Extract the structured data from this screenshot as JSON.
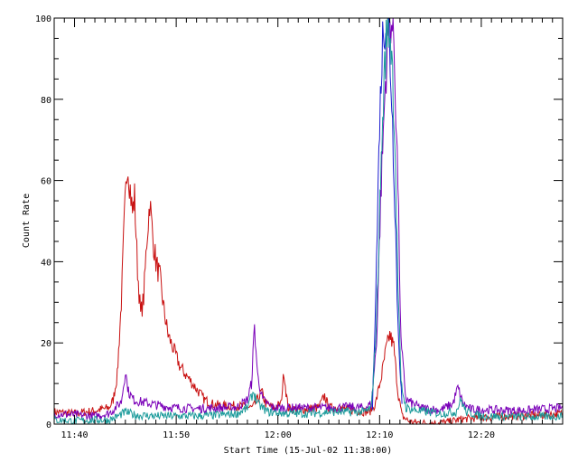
{
  "chart_data": {
    "type": "line",
    "title": "",
    "xlabel": "Start Time (15-Jul-02 11:38:00)",
    "ylabel": "Count Rate",
    "x_unit": "minutes after 11:38:00",
    "xlim": [
      0,
      50
    ],
    "ylim": [
      0,
      100
    ],
    "x_ticks": [
      {
        "value": 2,
        "label": "11:40"
      },
      {
        "value": 12,
        "label": "11:50"
      },
      {
        "value": 22,
        "label": "12:00"
      },
      {
        "value": 32,
        "label": "12:10"
      },
      {
        "value": 42,
        "label": "12:20"
      }
    ],
    "y_ticks": [
      {
        "value": 0,
        "label": "0"
      },
      {
        "value": 20,
        "label": "20"
      },
      {
        "value": 40,
        "label": "40"
      },
      {
        "value": 60,
        "label": "60"
      },
      {
        "value": 80,
        "label": "80"
      },
      {
        "value": 100,
        "label": "100"
      }
    ],
    "grid": false,
    "legend": "none",
    "series": [
      {
        "color": "#c81010",
        "points": [
          [
            0,
            3
          ],
          [
            2,
            2.6
          ],
          [
            4,
            3.3
          ],
          [
            5.4,
            4
          ],
          [
            5.8,
            6
          ],
          [
            6.2,
            12
          ],
          [
            6.6,
            30
          ],
          [
            6.9,
            50
          ],
          [
            7.2,
            65
          ],
          [
            7.4,
            60
          ],
          [
            7.7,
            52
          ],
          [
            7.9,
            56
          ],
          [
            8.2,
            38
          ],
          [
            8.5,
            27
          ],
          [
            8.8,
            31
          ],
          [
            9.1,
            45
          ],
          [
            9.4,
            55
          ],
          [
            9.7,
            46
          ],
          [
            10,
            40
          ],
          [
            10.4,
            36
          ],
          [
            10.8,
            28
          ],
          [
            11.2,
            22
          ],
          [
            11.8,
            18
          ],
          [
            12.4,
            14
          ],
          [
            13,
            12
          ],
          [
            13.6,
            10
          ],
          [
            14.2,
            8
          ],
          [
            14.8,
            6
          ],
          [
            15.5,
            5
          ],
          [
            16.5,
            4.5
          ],
          [
            18,
            4.5
          ],
          [
            19.5,
            4
          ],
          [
            20,
            6
          ],
          [
            20.4,
            8
          ],
          [
            20.8,
            5
          ],
          [
            21.6,
            4
          ],
          [
            22.3,
            5
          ],
          [
            22.6,
            13
          ],
          [
            22.8,
            8
          ],
          [
            23,
            4
          ],
          [
            24,
            3.5
          ],
          [
            26,
            4
          ],
          [
            26.6,
            7
          ],
          [
            27,
            4
          ],
          [
            28,
            4
          ],
          [
            29,
            3.6
          ],
          [
            30,
            3.2
          ],
          [
            31,
            3
          ],
          [
            31.6,
            5
          ],
          [
            32.2,
            12
          ],
          [
            32.6,
            18
          ],
          [
            33,
            22
          ],
          [
            33.4,
            19
          ],
          [
            33.8,
            8
          ],
          [
            34.2,
            2
          ],
          [
            35,
            0.5
          ],
          [
            37,
            0.2
          ],
          [
            38.6,
            0.5
          ],
          [
            40,
            1.2
          ],
          [
            42,
            1.6
          ],
          [
            45,
            2
          ],
          [
            48,
            2.2
          ],
          [
            50,
            2.6
          ]
        ]
      },
      {
        "color": "#7a00b8",
        "points": [
          [
            0,
            2.5
          ],
          [
            2,
            2.3
          ],
          [
            4,
            2
          ],
          [
            5.4,
            2.6
          ],
          [
            6,
            4
          ],
          [
            6.6,
            5.5
          ],
          [
            7,
            13
          ],
          [
            7.3,
            8
          ],
          [
            7.8,
            6
          ],
          [
            8.5,
            5.5
          ],
          [
            9.5,
            5
          ],
          [
            10.5,
            4.5
          ],
          [
            12,
            4
          ],
          [
            14,
            3.8
          ],
          [
            16,
            4
          ],
          [
            18,
            4.2
          ],
          [
            19,
            6
          ],
          [
            19.4,
            10
          ],
          [
            19.7,
            24
          ],
          [
            20,
            12
          ],
          [
            20.5,
            6
          ],
          [
            21.5,
            4
          ],
          [
            23,
            4
          ],
          [
            25,
            4
          ],
          [
            27,
            4
          ],
          [
            29,
            4.2
          ],
          [
            30.5,
            4
          ],
          [
            31.2,
            5
          ],
          [
            31.7,
            20
          ],
          [
            32.1,
            55
          ],
          [
            32.5,
            80
          ],
          [
            32.8,
            95
          ],
          [
            33.1,
            100
          ],
          [
            33.4,
            95
          ],
          [
            33.8,
            60
          ],
          [
            34.1,
            20
          ],
          [
            34.6,
            6
          ],
          [
            36,
            4
          ],
          [
            38,
            3.5
          ],
          [
            39.2,
            5
          ],
          [
            39.7,
            9
          ],
          [
            40.2,
            5
          ],
          [
            41,
            3.6
          ],
          [
            43,
            3.5
          ],
          [
            46,
            3.3
          ],
          [
            50,
            4
          ]
        ]
      },
      {
        "color": "#1a1ad0",
        "points": [
          [
            31.3,
            4
          ],
          [
            31.7,
            40
          ],
          [
            32,
            75
          ],
          [
            32.3,
            95
          ],
          [
            32.6,
            100
          ],
          [
            32.9,
            97
          ],
          [
            33.2,
            80
          ],
          [
            33.5,
            55
          ],
          [
            33.8,
            25
          ],
          [
            34.2,
            5
          ]
        ]
      },
      {
        "color": "#1a9a9a",
        "points": [
          [
            0,
            1
          ],
          [
            2,
            0.8
          ],
          [
            4,
            1
          ],
          [
            5.4,
            1
          ],
          [
            6,
            1.6
          ],
          [
            7,
            3
          ],
          [
            8,
            2.2
          ],
          [
            10,
            2
          ],
          [
            12,
            2
          ],
          [
            14,
            2
          ],
          [
            16,
            2.2
          ],
          [
            18,
            2.6
          ],
          [
            19,
            4
          ],
          [
            19.6,
            8
          ],
          [
            20,
            5
          ],
          [
            21,
            3
          ],
          [
            23,
            2.6
          ],
          [
            25,
            2.6
          ],
          [
            27,
            3
          ],
          [
            29,
            3
          ],
          [
            30.5,
            3
          ],
          [
            31.2,
            4
          ],
          [
            31.7,
            25
          ],
          [
            32.1,
            60
          ],
          [
            32.5,
            88
          ],
          [
            32.8,
            100
          ],
          [
            33.2,
            92
          ],
          [
            33.5,
            70
          ],
          [
            33.8,
            35
          ],
          [
            34.1,
            10
          ],
          [
            34.6,
            4
          ],
          [
            36,
            3.2
          ],
          [
            38,
            2.6
          ],
          [
            39.5,
            3
          ],
          [
            40,
            6
          ],
          [
            40.5,
            3
          ],
          [
            42,
            2
          ],
          [
            45,
            1.8
          ],
          [
            48,
            1.8
          ],
          [
            50,
            2
          ]
        ]
      }
    ]
  }
}
